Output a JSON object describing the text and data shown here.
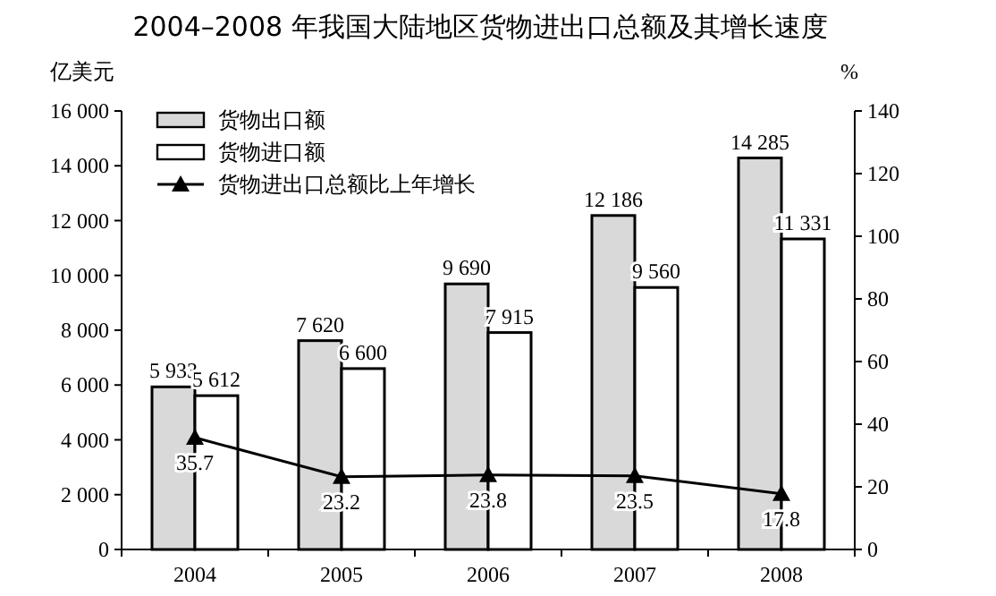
{
  "chart_data": {
    "type": "bar",
    "title": "2004–2008 年我国大陆地区货物进出口总额及其增长速度",
    "ylabel": "亿美元",
    "y2label": "%",
    "categories": [
      "2004",
      "2005",
      "2006",
      "2007",
      "2008"
    ],
    "series": [
      {
        "name": "货物出口额",
        "color": "#d9d9d9",
        "values": [
          5933,
          7620,
          9690,
          12186,
          14285
        ],
        "value_labels": [
          "5 933",
          "7 620",
          "9 690",
          "12 186",
          "14 285"
        ]
      },
      {
        "name": "货物进口额",
        "color": "#ffffff",
        "values": [
          5612,
          6600,
          7915,
          9560,
          11331
        ],
        "value_labels": [
          "5 612",
          "6 600",
          "7 915",
          "9 560",
          "11 331"
        ]
      },
      {
        "name": "货物进出口总额比上年增长",
        "type": "line",
        "axis": "y2",
        "color": "#000000",
        "marker": "triangle",
        "values": [
          35.7,
          23.2,
          23.8,
          23.5,
          17.8
        ],
        "value_labels": [
          "35.7",
          "23.2",
          "23.8",
          "23.5",
          "17.8"
        ]
      }
    ],
    "ylim": [
      0,
      16000
    ],
    "yticks": [
      0,
      {
        "value": 2000,
        "label": "2 000"
      },
      {
        "value": 4000,
        "label": "4 000"
      },
      {
        "value": 6000,
        "label": "6 000"
      },
      {
        "value": 8000,
        "label": "8 000"
      },
      {
        "value": 10000,
        "label": "10 000"
      },
      {
        "value": 12000,
        "label": "12 000"
      },
      {
        "value": 14000,
        "label": "14 000"
      },
      {
        "value": 16000,
        "label": "16 000"
      }
    ],
    "y2lim": [
      0,
      140
    ],
    "y2ticks": [
      0,
      20,
      40,
      60,
      80,
      100,
      120,
      140
    ],
    "grid": false,
    "legend": "top left"
  }
}
